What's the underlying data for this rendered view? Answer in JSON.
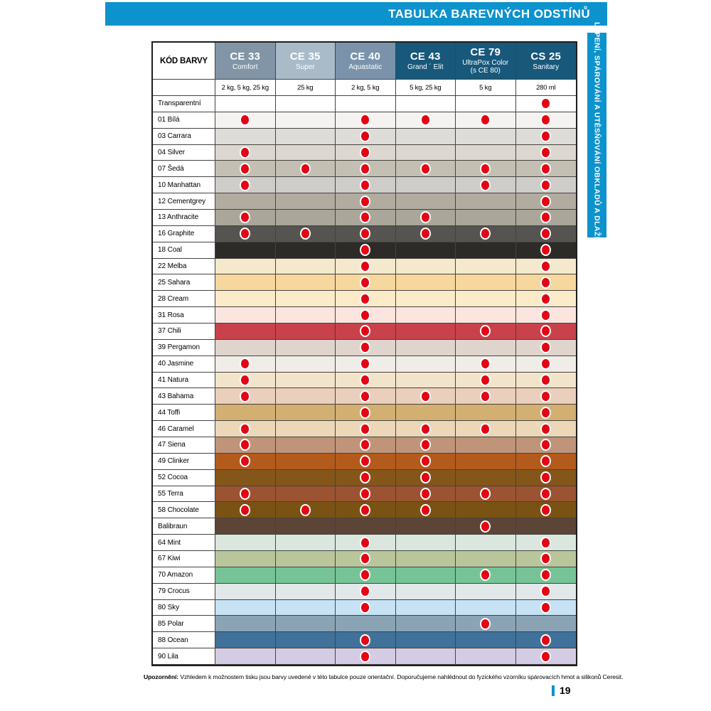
{
  "title_bar": {
    "title": "TABULKA BAREVNÝCH ODSTÍNŮ",
    "color": "#0c92cc"
  },
  "sidebar": {
    "label": "LEPENÍ, SPÁROVÁNÍ A UTĚSŇOVÁNÍ OBKLADŮ A DLAŽBY",
    "color": "#0c92cc"
  },
  "colors": {
    "accent_blue": "#0c92cc",
    "dot_red": "#e30513",
    "header_dark": "#17587b"
  },
  "table": {
    "corner_label": "KÓD BARVY",
    "products": [
      {
        "code": "CE 33",
        "name": "Comfort",
        "sizes": "2 kg, 5 kg, 25 kg",
        "header_color": "#8195a6"
      },
      {
        "code": "CE 35",
        "name": "Super",
        "sizes": "25 kg",
        "header_color": "#a9bbc9"
      },
      {
        "code": "CE 40",
        "name": "Aquastatic",
        "sizes": "2 kg, 5 kg",
        "header_color": "#7a93ab"
      },
      {
        "code": "CE 43",
        "name": "Grand ´ Elit",
        "sizes": "5 kg, 25 kg",
        "header_color": "#17587b"
      },
      {
        "code": "CE 79",
        "name": "UltraPox Color",
        "name2": "(s CE 80)",
        "sizes": "5 kg",
        "header_color": "#17587b"
      },
      {
        "code": "CS 25",
        "name": "Sanitary",
        "sizes": "280 ml",
        "header_color": "#17587b"
      }
    ],
    "rows": [
      {
        "label": "Transparentní",
        "color": "#ffffff",
        "dots": [
          0,
          0,
          0,
          0,
          0,
          1
        ]
      },
      {
        "label": "01 Bílá",
        "color": "#f4f3f1",
        "dots": [
          1,
          0,
          1,
          1,
          1,
          1
        ]
      },
      {
        "label": "03 Carrara",
        "color": "#dedcd8",
        "dots": [
          0,
          0,
          1,
          0,
          0,
          1
        ]
      },
      {
        "label": "04 Silver",
        "color": "#dcd7d0",
        "dots": [
          1,
          0,
          1,
          0,
          0,
          1
        ]
      },
      {
        "label": "07 Šedá",
        "color": "#c3bfb3",
        "dots": [
          1,
          1,
          1,
          1,
          1,
          1
        ]
      },
      {
        "label": "10 Manhattan",
        "color": "#cecdc9",
        "dots": [
          1,
          0,
          1,
          0,
          1,
          1
        ]
      },
      {
        "label": "12 Cementgrey",
        "color": "#b1ac9f",
        "dots": [
          0,
          0,
          1,
          0,
          0,
          1
        ]
      },
      {
        "label": "13 Anthracite",
        "color": "#aaa79a",
        "dots": [
          1,
          0,
          1,
          1,
          0,
          1
        ]
      },
      {
        "label": "16 Graphite",
        "color": "#565451",
        "dots": [
          1,
          1,
          1,
          1,
          1,
          1
        ]
      },
      {
        "label": "18 Coal",
        "color": "#2c2b28",
        "dots": [
          0,
          0,
          1,
          0,
          0,
          1
        ]
      },
      {
        "label": "22 Melba",
        "color": "#f4e9cd",
        "dots": [
          0,
          0,
          1,
          0,
          0,
          1
        ]
      },
      {
        "label": "25 Sahara",
        "color": "#f6d79e",
        "dots": [
          0,
          0,
          1,
          0,
          0,
          1
        ]
      },
      {
        "label": "28 Cream",
        "color": "#fcebc9",
        "dots": [
          0,
          0,
          1,
          0,
          0,
          1
        ]
      },
      {
        "label": "31 Rosa",
        "color": "#fce4df",
        "dots": [
          0,
          0,
          1,
          0,
          0,
          1
        ]
      },
      {
        "label": "37 Chili",
        "color": "#c8414b",
        "dots": [
          0,
          0,
          1,
          0,
          1,
          1
        ]
      },
      {
        "label": "39 Pergamon",
        "color": "#e0d5cd",
        "dots": [
          0,
          0,
          1,
          0,
          0,
          1
        ]
      },
      {
        "label": "40 Jasmine",
        "color": "#f0ede8",
        "dots": [
          1,
          0,
          1,
          0,
          1,
          1
        ]
      },
      {
        "label": "41 Natura",
        "color": "#f2e4cb",
        "dots": [
          1,
          0,
          1,
          0,
          1,
          1
        ]
      },
      {
        "label": "43 Bahama",
        "color": "#e9cfbc",
        "dots": [
          1,
          0,
          1,
          1,
          1,
          1
        ]
      },
      {
        "label": "44 Toffi",
        "color": "#d3af72",
        "dots": [
          0,
          0,
          1,
          0,
          0,
          1
        ]
      },
      {
        "label": "46 Caramel",
        "color": "#ecd7b9",
        "dots": [
          1,
          0,
          1,
          1,
          1,
          1
        ]
      },
      {
        "label": "47 Siena",
        "color": "#bf9478",
        "dots": [
          1,
          0,
          1,
          1,
          0,
          1
        ]
      },
      {
        "label": "49 Clinker",
        "color": "#b35a1d",
        "dots": [
          1,
          0,
          1,
          1,
          0,
          1
        ]
      },
      {
        "label": "52 Cocoa",
        "color": "#84561a",
        "dots": [
          0,
          0,
          1,
          1,
          0,
          1
        ]
      },
      {
        "label": "55 Terra",
        "color": "#9b5332",
        "dots": [
          1,
          0,
          1,
          1,
          1,
          1
        ]
      },
      {
        "label": "58 Chocolate",
        "color": "#7a5213",
        "dots": [
          1,
          1,
          1,
          1,
          0,
          1
        ]
      },
      {
        "label": "Balibraun",
        "color": "#5c4436",
        "dots": [
          0,
          0,
          0,
          0,
          1,
          0
        ]
      },
      {
        "label": "64 Mint",
        "color": "#dbe7de",
        "dots": [
          0,
          0,
          1,
          0,
          0,
          1
        ]
      },
      {
        "label": "67 Kiwi",
        "color": "#b9c69b",
        "dots": [
          0,
          0,
          1,
          0,
          0,
          1
        ]
      },
      {
        "label": "70 Amazon",
        "color": "#76c397",
        "dots": [
          0,
          0,
          1,
          0,
          1,
          1
        ]
      },
      {
        "label": "79 Crocus",
        "color": "#e2e8ea",
        "dots": [
          0,
          0,
          1,
          0,
          0,
          1
        ]
      },
      {
        "label": "80 Sky",
        "color": "#c6e2f4",
        "dots": [
          0,
          0,
          1,
          0,
          0,
          1
        ]
      },
      {
        "label": "85 Polar",
        "color": "#8ba4b5",
        "dots": [
          0,
          0,
          0,
          0,
          1,
          0
        ]
      },
      {
        "label": "88 Ocean",
        "color": "#3f719a",
        "dots": [
          0,
          0,
          1,
          0,
          0,
          1
        ]
      },
      {
        "label": "90 Lila",
        "color": "#d3cce4",
        "dots": [
          0,
          0,
          1,
          0,
          0,
          1
        ]
      }
    ]
  },
  "footer": {
    "label": "Upozornění:",
    "text": " Vzhledem k možnostem tisku jsou barvy uvedené v této tabulce pouze orientační. Doporučujeme nahlédnout do fyzického vzorníku spárovacích hmot a silikonů Ceresit."
  },
  "page": {
    "number": "19"
  }
}
